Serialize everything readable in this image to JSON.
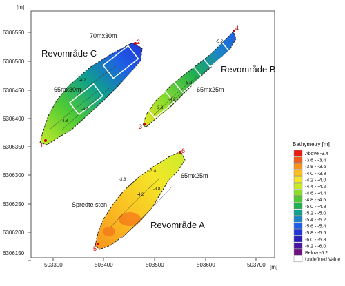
{
  "map": {
    "axis_unit": "[m]",
    "x_ticks": [
      "503300",
      "503400",
      "503500",
      "503600",
      "503700"
    ],
    "y_ticks": [
      "6306550",
      "6306500",
      "6306450",
      "6306400",
      "6306350",
      "6306300",
      "6306250",
      "6306200",
      "6306150"
    ]
  },
  "regions": {
    "c": {
      "title": "Revområde C",
      "dim_top": "70mx30m",
      "dim_bottom": "65mx30m",
      "corner_a": "2",
      "corner_b": "1"
    },
    "b": {
      "title": "Revområde B",
      "dim": "65mx25m",
      "corner_a": "4",
      "corner_b": "3"
    },
    "a": {
      "title": "Revområde A",
      "dim": "65mx25m",
      "corner_a": "6",
      "corner_b": "5",
      "note": "Spredte sten"
    }
  },
  "contour_labels": [
    "-4.8",
    "-4.8",
    "-4.2",
    "-5.2",
    "-3.8",
    "-5.2",
    "-4.2",
    "-4.2",
    "-3.8",
    "-3.8",
    "-3.8"
  ],
  "legend": {
    "title": "Bathymetry [m]",
    "items": [
      {
        "label": "Above -3.4",
        "color": "#e81c10"
      },
      {
        "label": "-3.6 - -3.4",
        "color": "#f25c18"
      },
      {
        "label": "-3.8 - -3.6",
        "color": "#f7941c"
      },
      {
        "label": "-4.0 - -3.8",
        "color": "#fbbf22"
      },
      {
        "label": "-4.2 - -4.0",
        "color": "#f3e628"
      },
      {
        "label": "-4.4 - -4.2",
        "color": "#c8ec2a"
      },
      {
        "label": "-4.6 - -4.4",
        "color": "#8ddd2c"
      },
      {
        "label": "-4.8 - -4.6",
        "color": "#4fca34"
      },
      {
        "label": "-5.0 - -4.8",
        "color": "#1fb050"
      },
      {
        "label": "-5.2 - -5.0",
        "color": "#0fa08c"
      },
      {
        "label": "-5.4 - -5.2",
        "color": "#1a84c8"
      },
      {
        "label": "-5.6 - -5.4",
        "color": "#1f5ee6"
      },
      {
        "label": "-5.8 - -5.6",
        "color": "#2036d8"
      },
      {
        "label": "-6.0 - -5.8",
        "color": "#2a1fb8"
      },
      {
        "label": "-6.2 - -6.0",
        "color": "#4a17a0"
      },
      {
        "label": "Below -6.2",
        "color": "#6e1080"
      },
      {
        "label": "Undefined Value",
        "color": "#ffffff"
      }
    ]
  }
}
